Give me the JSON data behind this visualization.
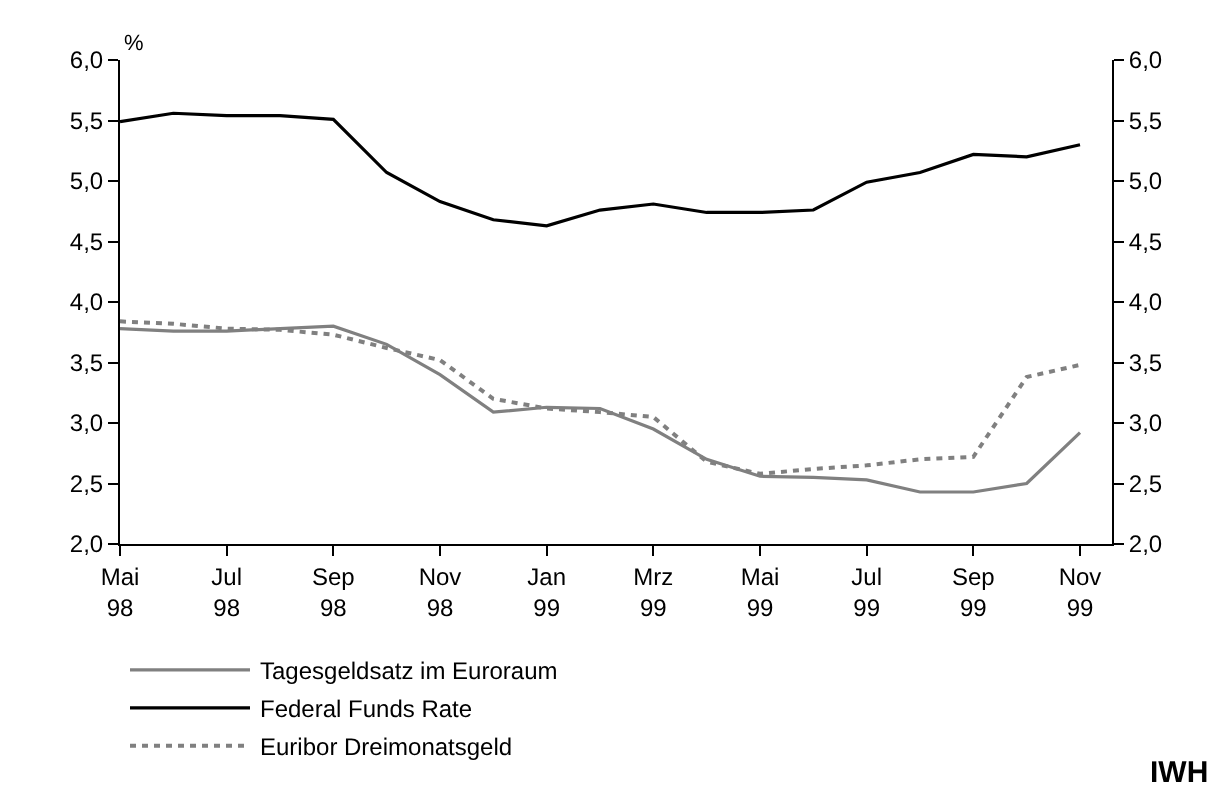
{
  "chart_data": {
    "type": "line",
    "ylabel": "%",
    "categories": [
      "Mai\n98",
      null,
      "Jul\n98",
      null,
      "Sep\n98",
      null,
      "Nov\n98",
      null,
      "Jan\n99",
      null,
      "Mrz\n99",
      null,
      "Mai\n99",
      null,
      "Jul\n99",
      null,
      "Sep\n99",
      null,
      "Nov\n99"
    ],
    "series": [
      {
        "name": "Tagesgeldsatz im Euroraum",
        "color": "#808080",
        "line_style": "solid",
        "values": [
          3.78,
          3.76,
          3.76,
          3.78,
          3.8,
          3.65,
          3.4,
          3.09,
          3.13,
          3.12,
          2.95,
          2.7,
          2.56,
          2.55,
          2.53,
          2.43,
          2.43,
          2.5,
          2.92
        ]
      },
      {
        "name": "Federal Funds Rate",
        "color": "#000000",
        "line_style": "solid",
        "values": [
          5.49,
          5.56,
          5.54,
          5.54,
          5.51,
          5.07,
          4.83,
          4.68,
          4.63,
          4.76,
          4.81,
          4.74,
          4.74,
          4.76,
          4.99,
          5.07,
          5.22,
          5.2,
          5.3
        ]
      },
      {
        "name": "Euribor Dreimonatsgeld",
        "color": "#808080",
        "line_style": "dotted",
        "values": [
          3.84,
          3.82,
          3.78,
          3.77,
          3.73,
          3.62,
          3.52,
          3.2,
          3.12,
          3.09,
          3.05,
          2.68,
          2.58,
          2.62,
          2.65,
          2.7,
          2.72,
          3.38,
          3.48
        ]
      }
    ],
    "ylim": [
      2.0,
      6.0
    ],
    "yticks": [
      {
        "value": 2.0,
        "label": "2,0"
      },
      {
        "value": 2.5,
        "label": "2,5"
      },
      {
        "value": 3.0,
        "label": "3,0"
      },
      {
        "value": 3.5,
        "label": "3,5"
      },
      {
        "value": 4.0,
        "label": "4,0"
      },
      {
        "value": 4.5,
        "label": "4,5"
      },
      {
        "value": 5.0,
        "label": "5,0"
      },
      {
        "value": 5.5,
        "label": "5,5"
      },
      {
        "value": 6.0,
        "label": "6,0"
      }
    ],
    "y2lim": [
      2.0,
      6.0
    ],
    "y2ticks": [
      {
        "value": 2.0,
        "label": "2,0"
      },
      {
        "value": 2.5,
        "label": "2,5"
      },
      {
        "value": 3.0,
        "label": "3,0"
      },
      {
        "value": 3.5,
        "label": "3,5"
      },
      {
        "value": 4.0,
        "label": "4,0"
      },
      {
        "value": 4.5,
        "label": "4,5"
      },
      {
        "value": 5.0,
        "label": "5,0"
      },
      {
        "value": 5.5,
        "label": "5,5"
      },
      {
        "value": 6.0,
        "label": "6,0"
      }
    ],
    "legend": "bottom",
    "marker": "none",
    "annotations": [
      "IWH"
    ]
  }
}
